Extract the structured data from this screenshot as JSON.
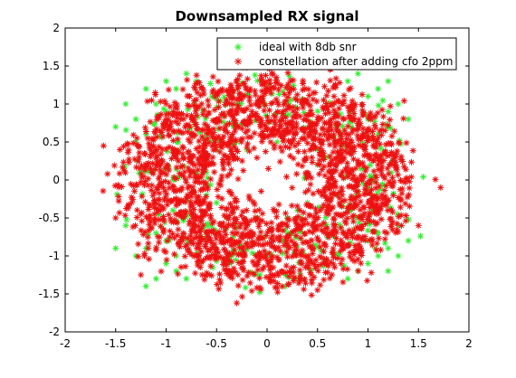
{
  "chart_data": {
    "type": "scatter",
    "title": "Downsampled RX signal",
    "xlabel": "",
    "ylabel": "",
    "xlim": [
      -2,
      2
    ],
    "ylim": [
      -2,
      2
    ],
    "x_ticks": [
      -2,
      -1.5,
      -1,
      -0.5,
      0,
      0.5,
      1,
      1.5,
      2
    ],
    "y_ticks": [
      -2,
      -1.5,
      -1,
      -0.5,
      0,
      0.5,
      1,
      1.5,
      2
    ],
    "x_tick_labels": [
      "-2",
      "-1.5",
      "-1",
      "-0.5",
      "0",
      "0.5",
      "1",
      "1.5",
      "2"
    ],
    "y_tick_labels": [
      "-2",
      "-1.5",
      "-1",
      "-0.5",
      "0",
      "0.5",
      "1",
      "1.5",
      "2"
    ],
    "grid": false,
    "legend_position": "top-right",
    "marker": "*",
    "series": [
      {
        "name": "ideal with 8db snr",
        "color": "#33ee33",
        "points": [
          [
            -1.1,
            1.0
          ],
          [
            -0.9,
            1.2
          ],
          [
            -0.7,
            1.3
          ],
          [
            -1.3,
            0.8
          ],
          [
            -1.4,
            1.0
          ],
          [
            -1.2,
            1.2
          ],
          [
            -1.0,
            1.3
          ],
          [
            -0.8,
            1.4
          ],
          [
            -1.5,
            0.7
          ],
          [
            -1.3,
            0.5
          ],
          [
            -1.2,
            0.6
          ],
          [
            -1.0,
            0.9
          ],
          [
            0.8,
            1.3
          ],
          [
            1.0,
            1.1
          ],
          [
            1.2,
            0.9
          ],
          [
            1.1,
            1.2
          ],
          [
            1.3,
            1.0
          ],
          [
            0.9,
            1.4
          ],
          [
            1.2,
            0.7
          ],
          [
            1.4,
            0.8
          ],
          [
            1.0,
            0.8
          ],
          [
            1.1,
            0.6
          ],
          [
            1.2,
            1.3
          ],
          [
            1.0,
            -1.1
          ],
          [
            1.2,
            -0.9
          ],
          [
            1.1,
            -0.7
          ],
          [
            0.9,
            -1.2
          ],
          [
            1.3,
            -1.0
          ],
          [
            1.2,
            -1.2
          ],
          [
            1.0,
            -0.8
          ],
          [
            1.4,
            -0.8
          ],
          [
            1.1,
            -1.0
          ],
          [
            0.8,
            -1.3
          ],
          [
            1.3,
            -0.6
          ],
          [
            -1.0,
            -1.1
          ],
          [
            -1.2,
            -0.9
          ],
          [
            -0.9,
            -1.2
          ],
          [
            -1.1,
            -1.3
          ],
          [
            -1.3,
            -1.0
          ],
          [
            -0.8,
            -1.3
          ],
          [
            -1.4,
            -0.6
          ],
          [
            -1.5,
            -0.9
          ],
          [
            -1.0,
            -0.8
          ],
          [
            -1.2,
            -1.4
          ],
          [
            -0.9,
            -1.0
          ],
          [
            -1.1,
            -0.7
          ],
          [
            0.5,
            0.2
          ],
          [
            0.6,
            0.3
          ],
          [
            0.5,
            0.4
          ],
          [
            0.3,
            -0.4
          ],
          [
            0.2,
            -0.5
          ],
          [
            0.4,
            -0.3
          ],
          [
            -0.5,
            -0.3
          ],
          [
            -0.6,
            -0.2
          ],
          [
            -0.4,
            -0.5
          ],
          [
            -0.3,
            0.5
          ],
          [
            -0.2,
            0.4
          ],
          [
            -0.5,
            0.4
          ],
          [
            -0.6,
            0.1
          ],
          [
            0.6,
            -0.1
          ],
          [
            0.1,
            0.5
          ],
          [
            -0.1,
            -0.5
          ]
        ]
      },
      {
        "name": "constellation after adding cfo 2ppm",
        "color": "#ee1111",
        "rings": [
          {
            "r": 1.15,
            "spread": 0.15
          },
          {
            "r": 0.85,
            "spread": 0.2
          },
          {
            "r": 0.65,
            "spread": 0.15
          }
        ],
        "outliers": [
          [
            1.72,
            -0.1
          ],
          [
            -1.58,
            0.08
          ],
          [
            -1.62,
            0.45
          ],
          [
            -0.3,
            -1.62
          ],
          [
            1.5,
            -0.6
          ],
          [
            -1.5,
            -0.5
          ],
          [
            0.2,
            1.5
          ],
          [
            -0.2,
            1.48
          ],
          [
            0.5,
            -1.45
          ],
          [
            -1.25,
            -1.25
          ]
        ]
      }
    ]
  }
}
